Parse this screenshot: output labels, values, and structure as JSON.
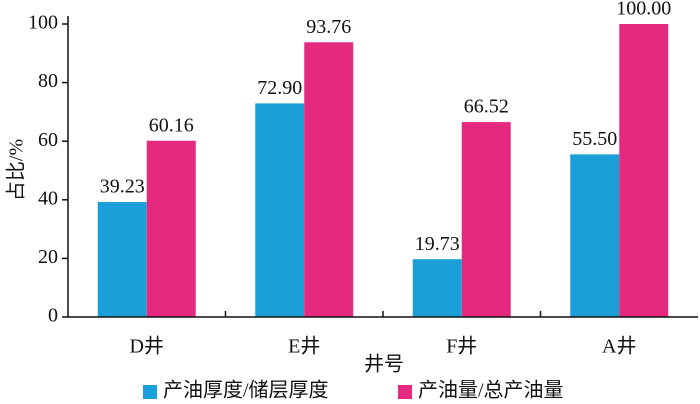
{
  "chart_data": {
    "type": "bar",
    "categories": [
      "D井",
      "E井",
      "F井",
      "A井"
    ],
    "series": [
      {
        "name": "产油厚度/储层厚度",
        "color": "#1a9fd9",
        "values": [
          39.23,
          72.9,
          19.73,
          55.5
        ],
        "value_labels": [
          "39.23",
          "72.90",
          "19.73",
          "55.50"
        ]
      },
      {
        "name": "产油量/总产油量",
        "color": "#e5297f",
        "values": [
          60.16,
          93.76,
          66.52,
          100
        ],
        "value_labels": [
          "60.16",
          "93.76",
          "66.52",
          "100.00"
        ]
      }
    ],
    "x_label": "井号",
    "y_label": "占比/%",
    "ylim": [
      0,
      100
    ],
    "yticks": [
      0,
      20,
      40,
      60,
      80,
      100
    ]
  }
}
